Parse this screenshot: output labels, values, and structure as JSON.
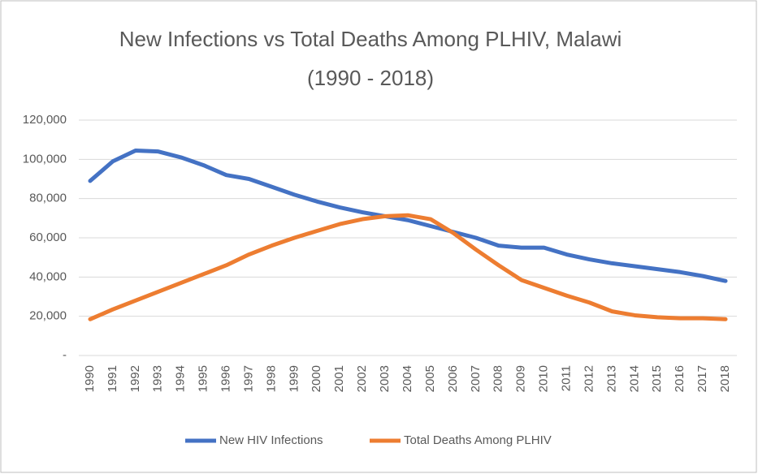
{
  "chart_data": {
    "type": "line",
    "title": "New Infections vs Total Deaths Among PLHIV, Malawi",
    "subtitle": "(1990 - 2018)",
    "categories": [
      "1990",
      "1991",
      "1992",
      "1993",
      "1994",
      "1995",
      "1996",
      "1997",
      "1998",
      "1999",
      "2000",
      "2001",
      "2002",
      "2003",
      "2004",
      "2005",
      "2006",
      "2007",
      "2008",
      "2009",
      "2010",
      "2011",
      "2012",
      "2013",
      "2014",
      "2015",
      "2016",
      "2017",
      "2018"
    ],
    "series": [
      {
        "name": "New HIV Infections",
        "color": "#4472c4",
        "values": [
          89000,
          99000,
          104500,
          104000,
          101000,
          97000,
          92000,
          90000,
          86000,
          82000,
          78500,
          75500,
          73000,
          71000,
          69000,
          66000,
          63000,
          60000,
          56000,
          55000,
          55000,
          51500,
          49000,
          47000,
          45500,
          44000,
          42500,
          40500,
          38000
        ]
      },
      {
        "name": "Total Deaths Among PLHIV",
        "color": "#ed7d31",
        "values": [
          18500,
          23500,
          28000,
          32500,
          37000,
          41500,
          46000,
          51500,
          56000,
          60000,
          63500,
          67000,
          69500,
          71000,
          71500,
          69500,
          62500,
          54000,
          46000,
          38500,
          34500,
          30500,
          27000,
          22500,
          20500,
          19500,
          19000,
          19000,
          18500
        ]
      }
    ],
    "ylim": [
      0,
      120000
    ],
    "yticks": [
      {
        "value": 0,
        "label": "-"
      },
      {
        "value": 20000,
        "label": "20,000"
      },
      {
        "value": 40000,
        "label": "40,000"
      },
      {
        "value": 60000,
        "label": "60,000"
      },
      {
        "value": 80000,
        "label": "80,000"
      },
      {
        "value": 100000,
        "label": "100,000"
      },
      {
        "value": 120000,
        "label": "120,000"
      }
    ],
    "grid": true,
    "legend": "bottom"
  }
}
